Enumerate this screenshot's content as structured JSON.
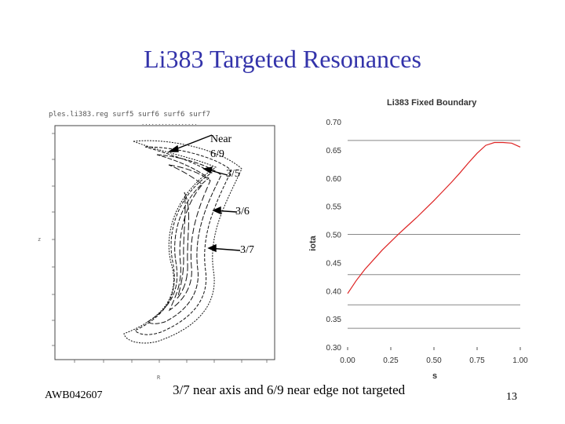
{
  "slide": {
    "title": "Li383 Targeted Resonances",
    "footer_left": "AWB042607",
    "caption": "3/7 near axis and 6/9 near edge not targeted",
    "page_number": "13"
  },
  "left_plot": {
    "header": "ples.li383.reg surf5 surf6 surf6 surf7",
    "annotations": [
      "Near",
      "6/9",
      "3/5",
      "3/6",
      "3/7"
    ],
    "y_axis_letter": "z",
    "x_axis_letter": "R"
  },
  "chart_data": {
    "type": "line",
    "title": "Li383 Fixed Boundary",
    "xlabel": "s",
    "ylabel": "iota",
    "xlim": [
      0.0,
      1.0
    ],
    "ylim": [
      0.3,
      0.7
    ],
    "x_ticks": [
      "0.00",
      "0.25",
      "0.50",
      "0.75",
      "1.00"
    ],
    "y_ticks": [
      "0.30",
      "0.35",
      "0.40",
      "0.45",
      "0.50",
      "0.55",
      "0.60",
      "0.65",
      "0.70"
    ],
    "horizontal_lines": [
      0.3333,
      0.375,
      0.4286,
      0.5,
      0.6667
    ],
    "series": [
      {
        "color": "#dd2222",
        "x": [
          0.0,
          0.05,
          0.1,
          0.15,
          0.2,
          0.25,
          0.3,
          0.35,
          0.4,
          0.45,
          0.5,
          0.55,
          0.6,
          0.65,
          0.7,
          0.75,
          0.8,
          0.85,
          0.9,
          0.95,
          1.0
        ],
        "y": [
          0.395,
          0.418,
          0.438,
          0.455,
          0.472,
          0.487,
          0.502,
          0.516,
          0.53,
          0.545,
          0.56,
          0.576,
          0.592,
          0.609,
          0.627,
          0.644,
          0.658,
          0.663,
          0.663,
          0.662,
          0.655
        ]
      }
    ]
  }
}
